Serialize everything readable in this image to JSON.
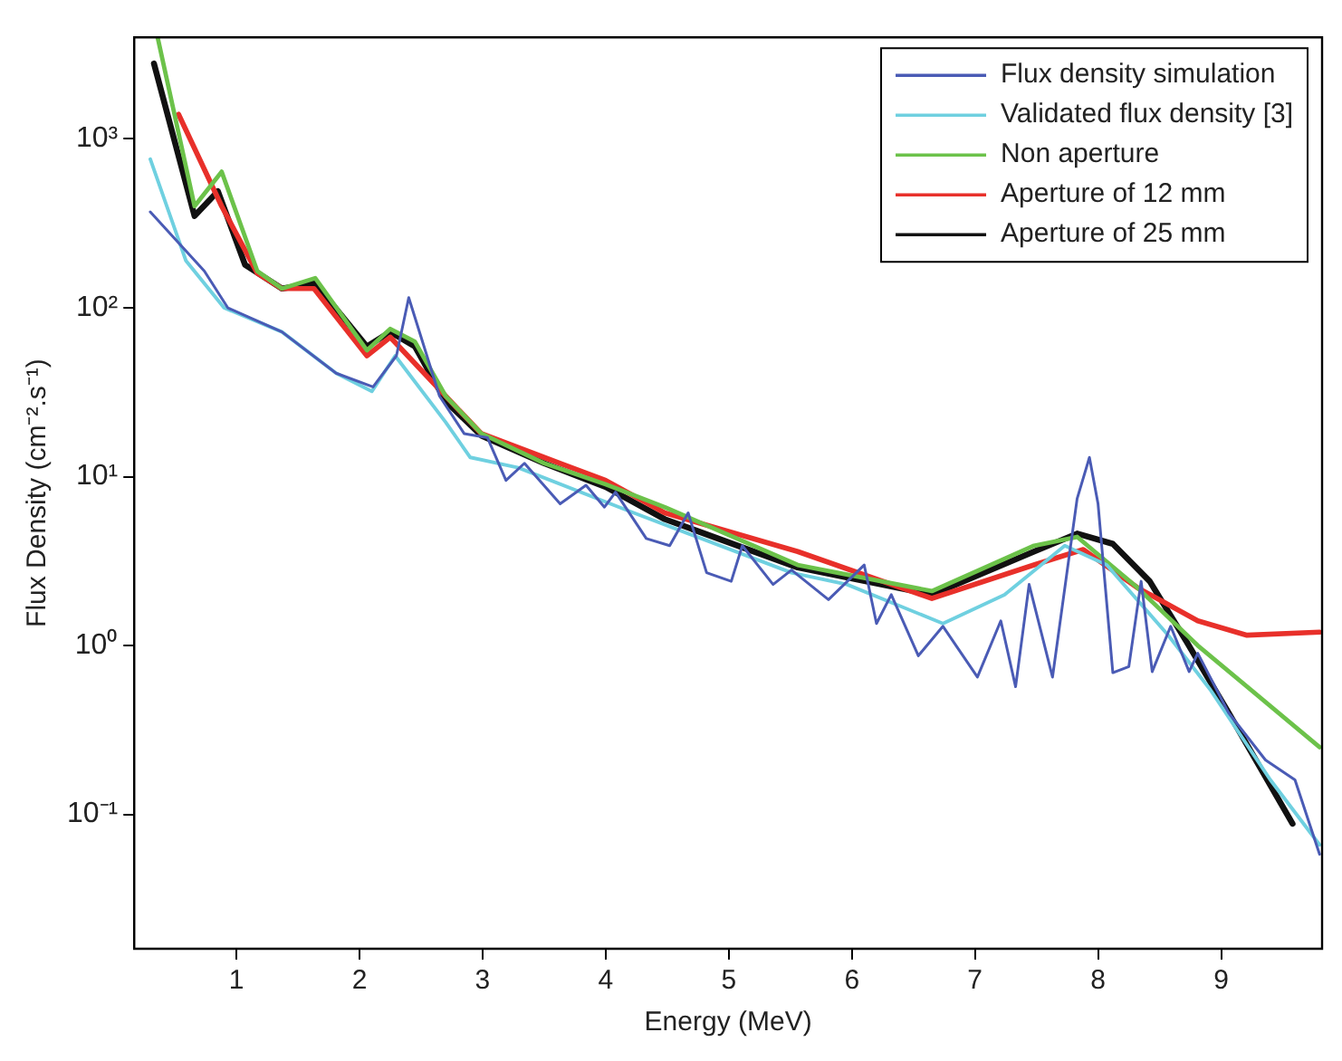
{
  "chart_data": {
    "type": "line",
    "xlabel": "Energy (MeV)",
    "ylabel": "Flux Density (cm⁻².s⁻¹)",
    "log": "y",
    "legend": "top right",
    "grid": false,
    "marker": "none",
    "line_style": "solid",
    "xlim": [
      0.17,
      9.82
    ],
    "xticks": [
      1,
      2,
      3,
      4,
      5,
      6,
      7,
      8,
      9
    ],
    "ylim": [
      0.016,
      4000
    ],
    "yticks": [
      {
        "value": 0.1,
        "label": "10⁻¹"
      },
      {
        "value": 1,
        "label": "10⁰"
      },
      {
        "value": 10,
        "label": "10¹"
      },
      {
        "value": 100,
        "label": "10²"
      },
      {
        "value": 1000,
        "label": "10³"
      }
    ],
    "series": [
      {
        "name": "Flux density simulation",
        "color": "#4a5bb5",
        "x": [
          0.3,
          0.74,
          0.93,
          1.37,
          1.81,
          2.11,
          2.3,
          2.4,
          2.65,
          2.85,
          3.04,
          3.19,
          3.34,
          3.63,
          3.84,
          3.99,
          4.08,
          4.33,
          4.52,
          4.67,
          4.82,
          5.02,
          5.11,
          5.36,
          5.51,
          5.81,
          6.1,
          6.2,
          6.32,
          6.54,
          6.74,
          7.02,
          7.21,
          7.33,
          7.44,
          7.63,
          7.83,
          7.93,
          8.0,
          8.12,
          8.25,
          8.35,
          8.44,
          8.59,
          8.74,
          8.81,
          9.06,
          9.36,
          9.6,
          9.8
        ],
        "values": [
          370,
          165,
          100,
          72,
          41,
          34,
          52,
          115,
          30,
          18,
          17,
          9.5,
          12,
          6.9,
          8.9,
          6.6,
          8.1,
          4.3,
          3.9,
          6.1,
          2.7,
          2.4,
          3.9,
          2.3,
          2.8,
          1.87,
          3.0,
          1.35,
          2.0,
          0.87,
          1.3,
          0.65,
          1.4,
          0.57,
          2.3,
          0.65,
          7.4,
          13,
          6.9,
          0.69,
          0.75,
          2.4,
          0.7,
          1.3,
          0.7,
          0.9,
          0.4,
          0.21,
          0.16,
          0.058
        ]
      },
      {
        "name": "Validated flux density [3]",
        "color": "#6fd0e0",
        "x": [
          0.3,
          0.59,
          0.9,
          1.37,
          1.81,
          2.1,
          2.29,
          2.7,
          2.9,
          3.29,
          4.18,
          4.67,
          5.51,
          5.96,
          6.74,
          7.24,
          7.73,
          8.07,
          8.57,
          8.91,
          9.4,
          9.8
        ],
        "values": [
          760,
          190,
          100,
          72,
          41,
          32,
          52,
          21,
          13,
          11.3,
          6.3,
          4.6,
          2.7,
          2.3,
          1.35,
          2.0,
          3.9,
          3.0,
          1.15,
          0.55,
          0.16,
          0.066
        ]
      },
      {
        "name": "Non aperture",
        "color": "#6cc24a",
        "x": [
          0.36,
          0.66,
          0.88,
          1.17,
          1.37,
          1.64,
          2.06,
          2.25,
          2.45,
          2.7,
          2.99,
          3.5,
          4.0,
          4.48,
          5.56,
          6.65,
          7.48,
          7.83,
          8.32,
          8.81,
          9.8
        ],
        "values": [
          4000,
          400,
          640,
          165,
          130,
          150,
          56,
          75,
          63,
          30,
          18,
          12,
          9,
          6.6,
          3.0,
          2.1,
          3.9,
          4.4,
          2.2,
          1.0,
          0.25
        ]
      },
      {
        "name": "Aperture of 12 mm",
        "color": "#e8302a",
        "x": [
          0.53,
          0.88,
          1.17,
          1.37,
          1.63,
          2.06,
          2.25,
          2.7,
          2.99,
          3.5,
          4.0,
          4.48,
          5.56,
          6.65,
          7.48,
          7.88,
          8.32,
          8.81,
          9.21,
          9.8
        ],
        "values": [
          1400,
          400,
          160,
          130,
          130,
          52,
          67,
          30,
          18,
          13,
          9.5,
          6.1,
          3.6,
          1.9,
          3.0,
          3.7,
          2.2,
          1.4,
          1.15,
          1.2
        ]
      },
      {
        "name": "Aperture of 25 mm",
        "color": "#111111",
        "x": [
          0.33,
          0.66,
          0.85,
          1.07,
          1.37,
          1.64,
          2.06,
          2.25,
          2.45,
          2.7,
          2.99,
          3.5,
          4.0,
          4.48,
          5.56,
          6.65,
          7.48,
          7.83,
          8.12,
          8.42,
          8.72,
          9.06,
          9.58
        ],
        "values": [
          2800,
          350,
          490,
          180,
          130,
          140,
          59,
          72,
          59,
          28,
          17.5,
          12,
          8.7,
          5.6,
          2.9,
          2.0,
          3.6,
          4.6,
          4.0,
          2.4,
          1.05,
          0.4,
          0.088
        ]
      }
    ]
  }
}
